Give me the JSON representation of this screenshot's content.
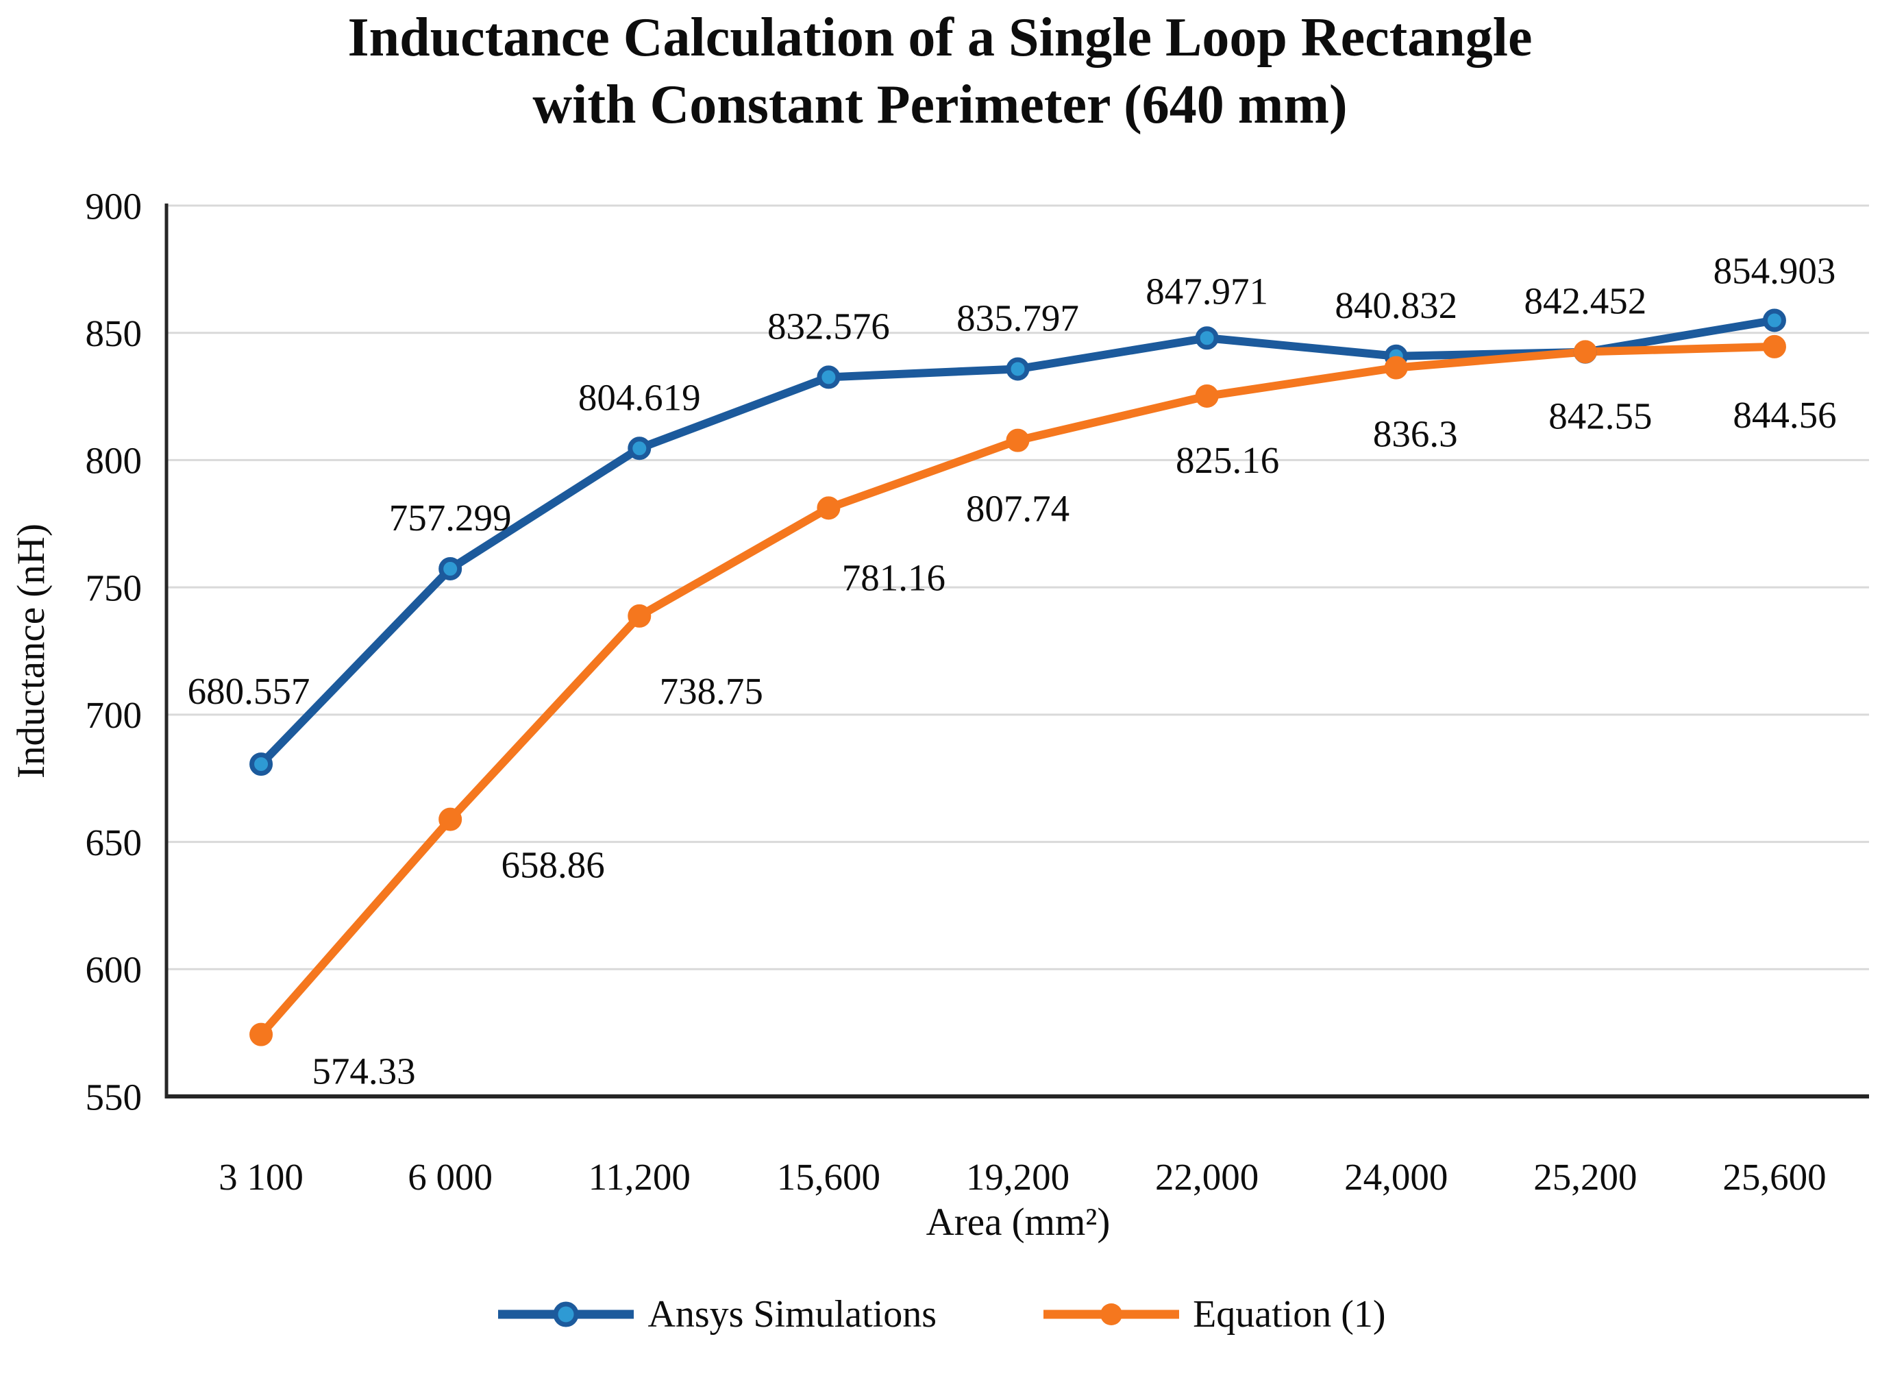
{
  "title": {
    "line1": "Inductance Calculation of a Single Loop Rectangle",
    "line2": "with Constant Perimeter (640 mm)"
  },
  "chart_data": {
    "type": "line",
    "title": "Inductance Calculation of a Single Loop Rectangle with Constant Perimeter (640 mm)",
    "xlabel": "Area (mm²)",
    "ylabel": "Inductance (nH)",
    "ylim": [
      550,
      900
    ],
    "yticks": [
      550,
      600,
      650,
      700,
      750,
      800,
      850,
      900
    ],
    "grid": true,
    "legend_position": "bottom",
    "categories": [
      "3 100",
      "6 000",
      "11,200",
      "15,600",
      "19,200",
      "22,000",
      "24,000",
      "25,200",
      "25,600"
    ],
    "series": [
      {
        "name": "Ansys Simulations",
        "values": [
          680.557,
          757.299,
          804.619,
          832.576,
          835.797,
          847.971,
          840.832,
          842.452,
          854.903
        ],
        "labels": [
          "680.557",
          "757.299",
          "804.619",
          "832.576",
          "835.797",
          "847.971",
          "840.832",
          "842.452",
          "854.903"
        ],
        "color": "#1c5a9c",
        "marker_fill": "#2e9ad4",
        "label_position": "above"
      },
      {
        "name": "Equation (1)",
        "values": [
          574.33,
          658.86,
          738.75,
          781.16,
          807.74,
          825.16,
          836.3,
          842.55,
          844.56
        ],
        "labels": [
          "574.33",
          "658.86",
          "738.75",
          "781.16",
          "807.74",
          "825.16",
          "836.3",
          "842.55",
          "844.56"
        ],
        "color": "#f5771e",
        "marker_fill": "#f5771e",
        "label_position": "below"
      }
    ]
  },
  "colors": {
    "gridline": "#d9d9d9",
    "axis": "#262626",
    "text": "#0d0d0d",
    "background": "#ffffff"
  }
}
